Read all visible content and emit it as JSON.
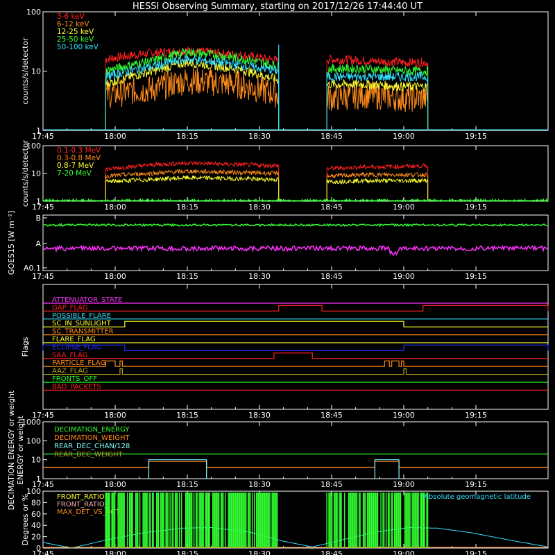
{
  "title": "HESSI Observing Summary, starting on 2017/12/26 17:44:40 UT",
  "time_ticks": [
    "17:45",
    "18:00",
    "18:15",
    "18:30",
    "18:45",
    "19:00",
    "19:15"
  ],
  "colors": {
    "bg": "#000000",
    "axis": "#ffffff",
    "red": "#ff2020",
    "orange": "#ff8c1a",
    "yellow": "#ffff33",
    "green": "#33ff33",
    "cyan": "#33e0ff",
    "magenta": "#ff33ff",
    "blue": "#2030ff",
    "olive": "#b0a020",
    "lime": "#20ff20",
    "pink": "#ffb0b0",
    "lightcyan": "#80ffff"
  },
  "chart_data": [
    {
      "id": "hxr",
      "type": "line",
      "ylabel": "counts/s/detector",
      "yscale": "log",
      "ylim": [
        1,
        100
      ],
      "ytick_labels": [
        "1",
        "10",
        "100"
      ],
      "xlim": [
        "17:45",
        "19:30"
      ],
      "series": [
        {
          "name": "3-6 keV",
          "color": "red",
          "segments": [
            {
              "x": [
                "17:58",
                "18:07",
                "18:15",
                "18:25",
                "18:34"
              ],
              "y": [
                16,
                20,
                22,
                19,
                15
              ]
            },
            {
              "x": [
                "18:44",
                "18:52",
                "19:00",
                "19:05"
              ],
              "y": [
                16,
                15,
                14,
                14
              ]
            }
          ]
        },
        {
          "name": "6-12 keV",
          "color": "orange",
          "segments": [
            {
              "x": [
                "17:58",
                "18:08",
                "18:15",
                "18:25",
                "18:34"
              ],
              "y": [
                4,
                5,
                7,
                6,
                4
              ]
            },
            {
              "x": [
                "18:44",
                "18:52",
                "19:00",
                "19:05"
              ],
              "y": [
                3.5,
                4,
                3.5,
                3.5
              ]
            }
          ]
        },
        {
          "name": "12-25 keV",
          "color": "yellow",
          "segments": [
            {
              "x": [
                "17:58",
                "18:08",
                "18:15",
                "18:25",
                "18:34"
              ],
              "y": [
                6,
                10,
                14,
                11,
                7
              ]
            },
            {
              "x": [
                "18:44",
                "18:52",
                "19:00",
                "19:05"
              ],
              "y": [
                6,
                6,
                5.5,
                5.5
              ]
            }
          ]
        },
        {
          "name": "25-50 keV",
          "color": "green",
          "segments": [
            {
              "x": [
                "17:58",
                "18:08",
                "18:15",
                "18:25",
                "18:34"
              ],
              "y": [
                10,
                15,
                21,
                17,
                12
              ]
            },
            {
              "x": [
                "18:44",
                "18:52",
                "19:00",
                "19:05"
              ],
              "y": [
                11,
                11,
                10,
                10
              ]
            }
          ]
        },
        {
          "name": "50-100 keV",
          "color": "cyan",
          "segments": [
            {
              "x": [
                "17:58",
                "18:08",
                "18:15",
                "18:25",
                "18:34"
              ],
              "y": [
                8,
                12,
                16,
                13,
                10
              ]
            },
            {
              "x": [
                "18:44",
                "18:52",
                "19:00",
                "19:05"
              ],
              "y": [
                8,
                8,
                8,
                8
              ]
            }
          ]
        }
      ]
    },
    {
      "id": "gamma",
      "type": "line",
      "ylabel": "counts/s/detector",
      "yscale": "log",
      "ylim": [
        1,
        100
      ],
      "ytick_labels": [
        "1",
        "10",
        "100"
      ],
      "xlim": [
        "17:45",
        "19:30"
      ],
      "series": [
        {
          "name": "0.1-0.3 MeV",
          "color": "red",
          "segments": [
            {
              "x": [
                "17:58",
                "18:07",
                "18:15",
                "18:25",
                "18:34"
              ],
              "y": [
                14,
                20,
                24,
                21,
                19
              ]
            },
            {
              "x": [
                "18:44",
                "18:52",
                "19:00",
                "19:05"
              ],
              "y": [
                15,
                17,
                18,
                19
              ]
            }
          ]
        },
        {
          "name": "0.3-0.8 MeV",
          "color": "orange",
          "segments": [
            {
              "x": [
                "17:58",
                "18:07",
                "18:15",
                "18:25",
                "18:34"
              ],
              "y": [
                8,
                10,
                12,
                11,
                10
              ]
            },
            {
              "x": [
                "18:44",
                "18:52",
                "19:00",
                "19:05"
              ],
              "y": [
                8,
                9,
                9,
                9
              ]
            }
          ]
        },
        {
          "name": "0.8-7 MeV",
          "color": "yellow",
          "segments": [
            {
              "x": [
                "17:58",
                "18:07",
                "18:15",
                "18:25",
                "18:34"
              ],
              "y": [
                5,
                6,
                7,
                6.5,
                6
              ]
            },
            {
              "x": [
                "18:44",
                "18:52",
                "19:00",
                "19:05"
              ],
              "y": [
                5,
                5.5,
                5.5,
                5.5
              ]
            }
          ]
        },
        {
          "name": "7-20 MeV",
          "color": "green",
          "segments": [
            {
              "x": [
                "17:45",
                "19:30"
              ],
              "y": [
                1,
                1
              ]
            }
          ]
        }
      ]
    },
    {
      "id": "goes",
      "type": "line",
      "ylabel": "GOES15 [W m⁻²]",
      "yscale": "log",
      "ylim": [
        "A0.1",
        "B"
      ],
      "ytick_labels": [
        "B",
        "A",
        "A0.1"
      ],
      "xlim": [
        "17:45",
        "19:30"
      ],
      "series": [
        {
          "name": "",
          "color": "green",
          "level": 0.18
        },
        {
          "name": "",
          "color": "magenta",
          "level": 0.6
        }
      ]
    },
    {
      "id": "flags",
      "type": "line",
      "ylabel": "Flags",
      "xlim": [
        "17:45",
        "19:30"
      ],
      "series": [
        {
          "name": "ATTENUATOR_STATE",
          "color": "magenta",
          "steps": []
        },
        {
          "name": "SAA_FLAG_GAP",
          "label": "GAP_FLAG",
          "color": "red",
          "steps": [
            [
              "18:34",
              "18:43"
            ],
            [
              "19:04",
              "19:30"
            ]
          ]
        },
        {
          "name": "POSSIBLE_FLARE",
          "color": "cyan",
          "steps": []
        },
        {
          "name": "SC_IN_SUNLIGHT",
          "color": "yellow",
          "steps": [
            [
              "18:02",
              "19:00"
            ]
          ]
        },
        {
          "name": "SC_TRANSMITTER",
          "color": "orange",
          "steps": []
        },
        {
          "name": "FLARE_FLAG",
          "color": "yellow",
          "steps": []
        },
        {
          "name": "ECLIPSE_FLAG",
          "color": "blue",
          "steps": [
            [
              "17:45",
              "18:02"
            ],
            [
              "19:00",
              "19:30"
            ]
          ]
        },
        {
          "name": "SAA_FLAG",
          "color": "red",
          "steps": [
            [
              "18:33",
              "18:41"
            ]
          ]
        },
        {
          "name": "PARTICLE_FLAG",
          "color": "orange",
          "steps": [
            [
              "17:58",
              "18:00"
            ],
            [
              "18:01",
              "18:01.5"
            ],
            [
              "18:56",
              "18:57"
            ],
            [
              "18:57.5",
              "18:59"
            ],
            [
              "18:59.5",
              "19:00"
            ]
          ]
        },
        {
          "name": "AAZ_FLAG",
          "color": "olive",
          "steps": [
            [
              "18:01",
              "18:01.5"
            ],
            [
              "19:00",
              "19:00.5"
            ]
          ]
        },
        {
          "name": "FRONTS_OFF",
          "color": "lime",
          "steps": []
        },
        {
          "name": "BAD_PACKETS",
          "color": "red",
          "steps": []
        }
      ]
    },
    {
      "id": "decimation",
      "type": "line",
      "ylabel": "DECIMATION ENERGY or weight",
      "yscale": "log",
      "ylim": [
        1,
        1000
      ],
      "ytick_labels": [
        "1",
        "10",
        "100",
        "1000"
      ],
      "xlim": [
        "17:45",
        "19:30"
      ],
      "series": [
        {
          "name": "DECIMATION_ENERGY",
          "color": "green",
          "segments": [
            {
              "x": [
                "17:45",
                "19:30"
              ],
              "y": [
                20,
                20
              ]
            }
          ]
        },
        {
          "name": "DECIMATION_WEIGHT",
          "color": "orange",
          "segments": [
            {
              "x": [
                "17:45",
                "18:07",
                "18:07",
                "18:19",
                "18:19",
                "18:54",
                "18:54",
                "18:59",
                "18:59",
                "19:30"
              ],
              "y": [
                4,
                4,
                8,
                8,
                4,
                4,
                8,
                8,
                4,
                4
              ]
            }
          ]
        },
        {
          "name": "REAR_DEC_CHAN/128",
          "color": "lightcyan",
          "segments": [
            {
              "x": [
                "18:07",
                "18:07",
                "18:19",
                "18:19"
              ],
              "y": [
                1,
                10,
                10,
                1
              ]
            },
            {
              "x": [
                "18:54",
                "18:54",
                "18:59",
                "18:59"
              ],
              "y": [
                1,
                10,
                10,
                1
              ]
            }
          ]
        },
        {
          "name": "REAR_DEC_WEIGHT",
          "color": "olive",
          "segments": []
        }
      ]
    },
    {
      "id": "ratios",
      "type": "line",
      "ylabel": "Degrees or %",
      "ylim": [
        0,
        100
      ],
      "ytick_labels": [
        "0",
        "20",
        "40",
        "60",
        "80",
        "100"
      ],
      "xlim": [
        "17:45",
        "19:30"
      ],
      "annotation": "Absolute geomagnetic latitude",
      "series": [
        {
          "name": "FRONT_RATIO",
          "color": "yellow",
          "segments": []
        },
        {
          "name": "FRONT_RATIO_",
          "color": "pink",
          "segments": []
        },
        {
          "name": "MAX_DET_VS_TOT",
          "color": "orange",
          "segments": []
        },
        {
          "name": "Absolute geomagnetic latitude",
          "color": "cyan",
          "segments": [
            {
              "x": [
                "17:45",
                "17:51",
                "17:58",
                "18:06",
                "18:14",
                "18:20",
                "18:28",
                "18:35",
                "18:41",
                "18:46",
                "18:54",
                "19:01",
                "19:07",
                "19:14",
                "19:22",
                "19:30"
              ],
              "y": [
                10,
                0,
                14,
                27,
                35,
                36,
                28,
                12,
                2,
                12,
                28,
                36,
                35,
                27,
                14,
                2
              ]
            }
          ]
        },
        {
          "name": "",
          "color": "green",
          "segments": [
            {
              "x": [
                "17:58",
                "18:34"
              ],
              "y": [
                100,
                100
              ]
            },
            {
              "x": [
                "18:44",
                "19:05"
              ],
              "y": [
                100,
                100
              ]
            }
          ]
        }
      ]
    }
  ]
}
